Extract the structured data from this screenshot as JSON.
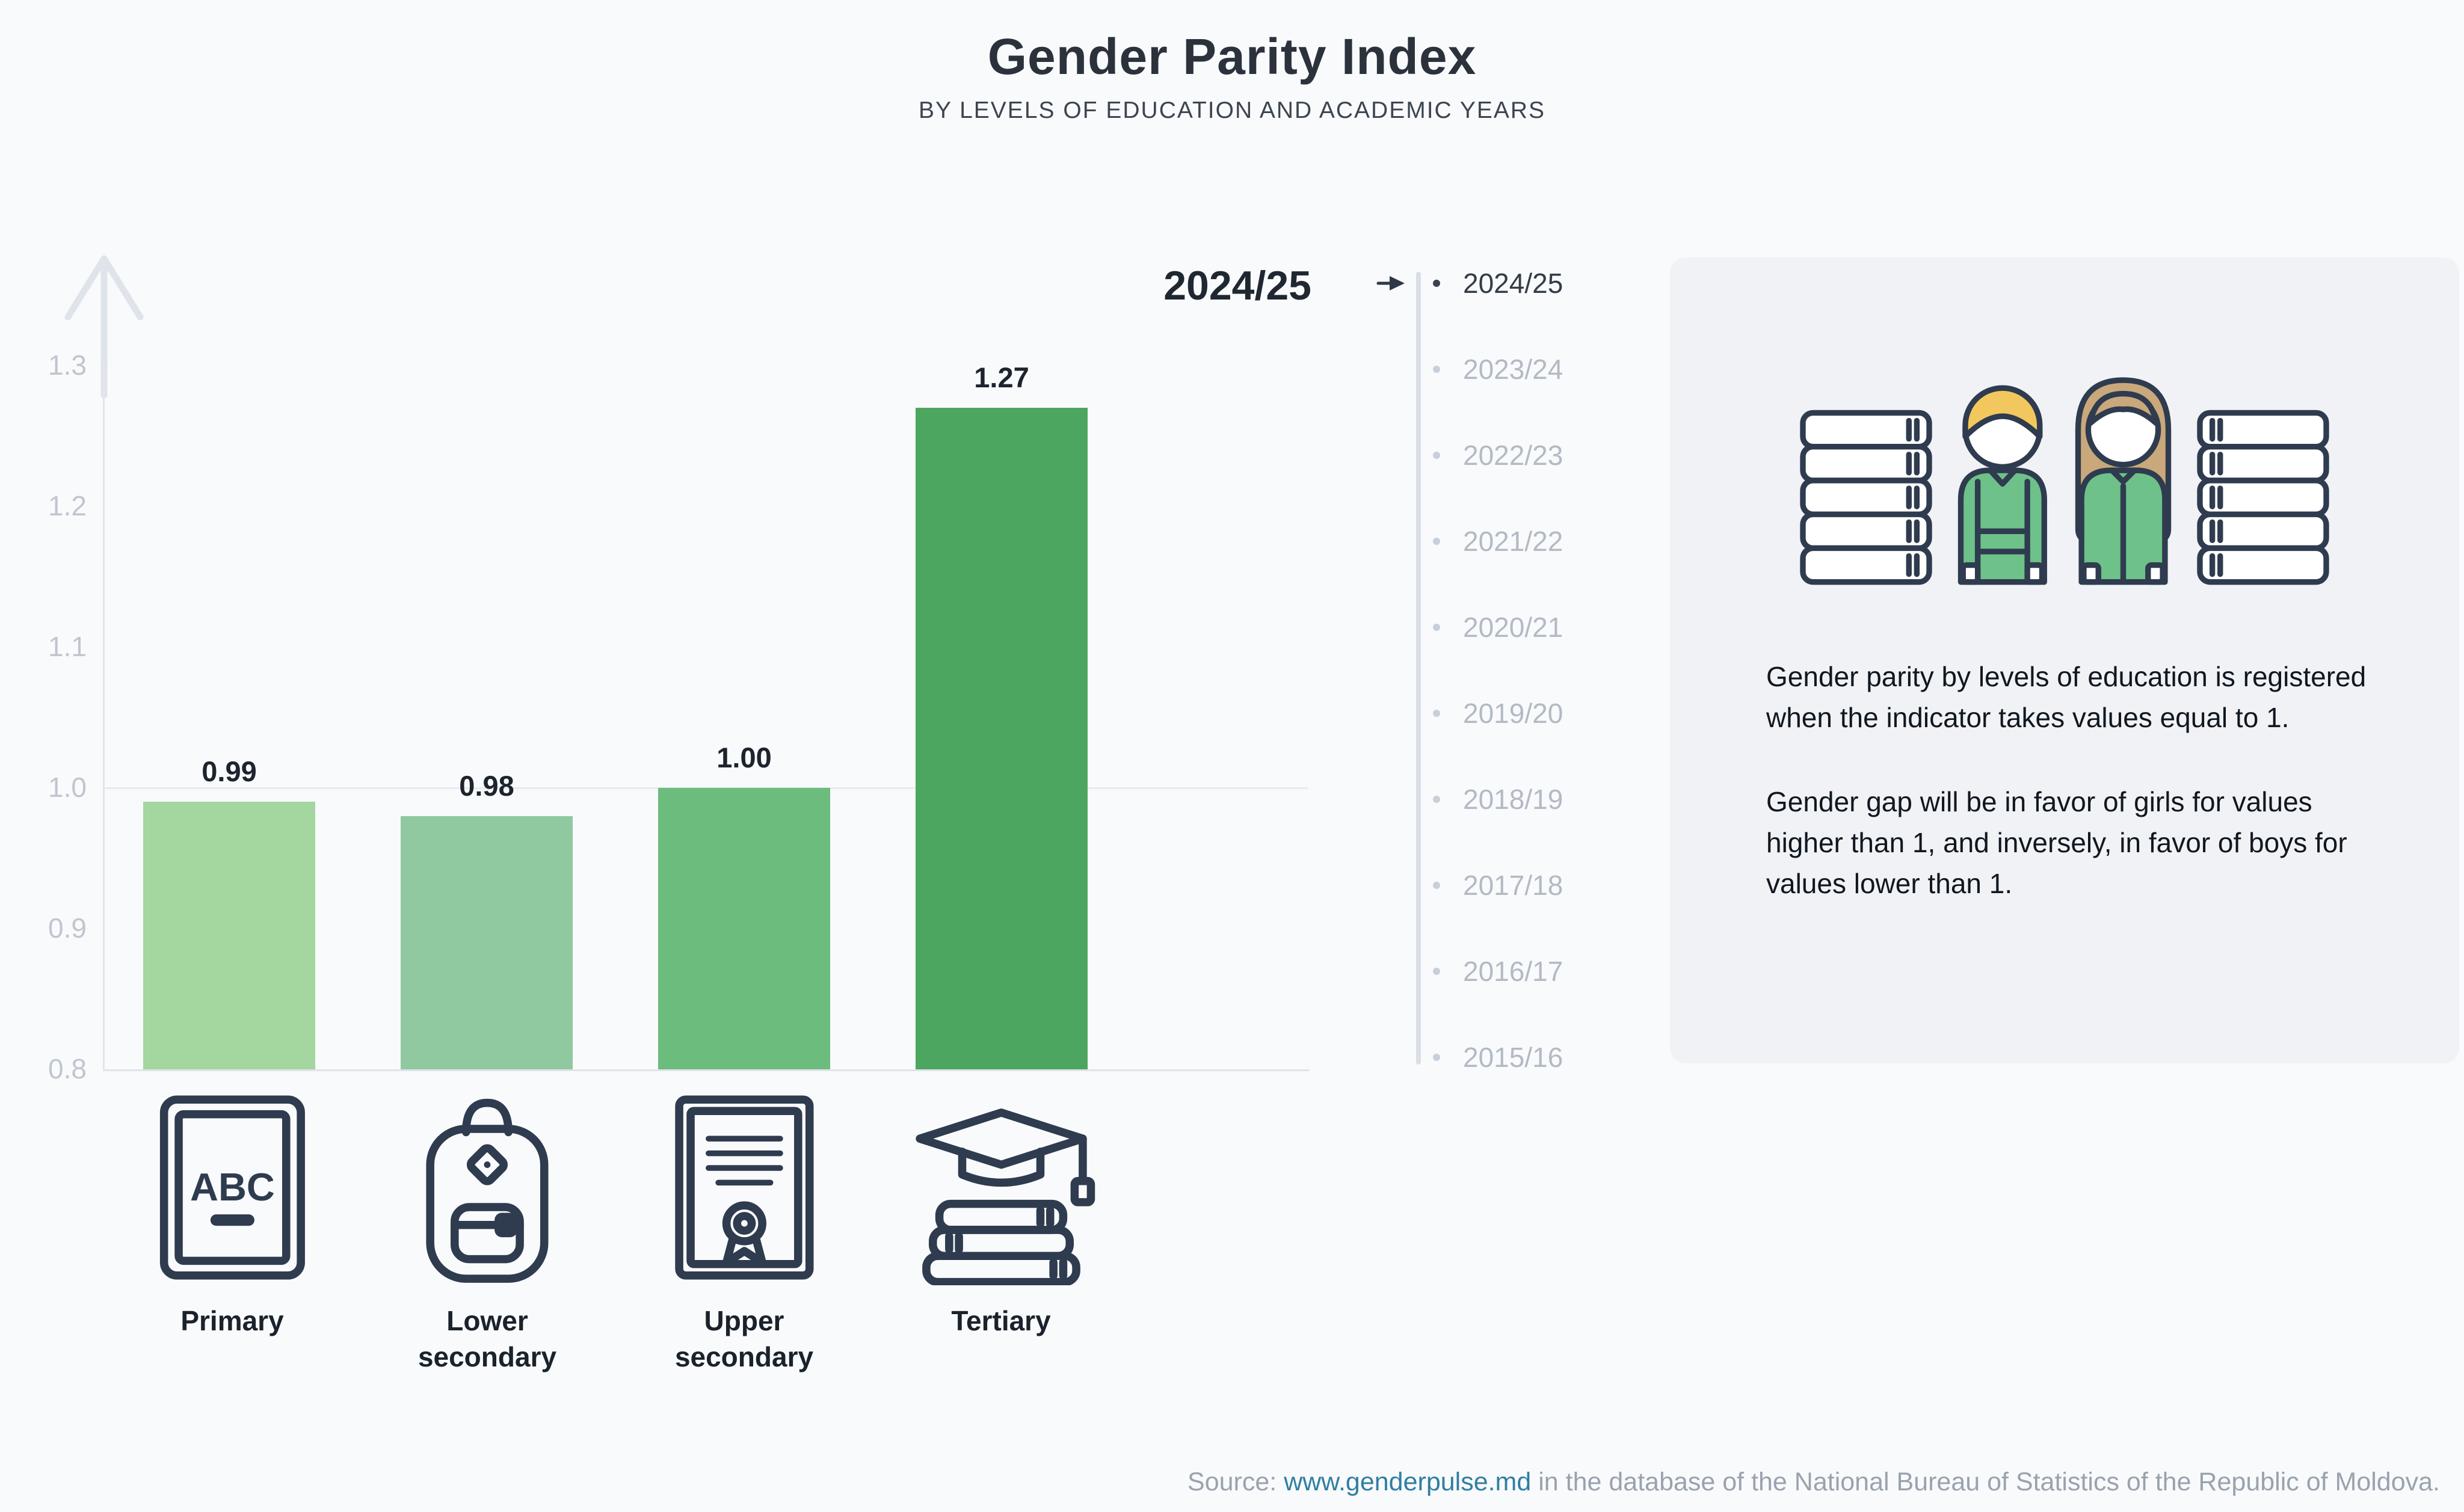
{
  "header": {
    "title": "Gender Parity Index",
    "subtitle": "BY LEVELS OF EDUCATION AND ACADEMIC YEARS"
  },
  "chart_data": {
    "type": "bar",
    "title": "Gender Parity Index",
    "categories": [
      "Primary",
      "Lower secondary",
      "Upper secondary",
      "Tertiary"
    ],
    "values": [
      0.99,
      0.98,
      1.0,
      1.27
    ],
    "value_labels": [
      "0.99",
      "0.98",
      "1.00",
      "1.27"
    ],
    "bar_colors": [
      "#a4d6a0",
      "#90c8a0",
      "#6cbc7d",
      "#4da65f"
    ],
    "ylim": [
      0.8,
      1.3
    ],
    "yticks": [
      0.8,
      0.9,
      1.0,
      1.1,
      1.2,
      1.3
    ],
    "ytick_labels": [
      "0.8",
      "0.9",
      "1.0",
      "1.1",
      "1.2",
      "1.3"
    ],
    "reference_line": 1.0,
    "grid": "reference line at 1.0 only",
    "legend": "none",
    "selected_year": "2024/25"
  },
  "timeline": {
    "selected": "2024/25",
    "years": [
      "2024/25",
      "2023/24",
      "2022/23",
      "2021/22",
      "2020/21",
      "2019/20",
      "2018/19",
      "2017/18",
      "2016/17",
      "2015/16"
    ]
  },
  "education_icons": [
    "abc-book-icon",
    "backpack-icon",
    "certificate-icon",
    "graduation-books-icon"
  ],
  "icons": {
    "primary_abc": "ABC"
  },
  "info_panel": {
    "paragraph1": "Gender parity by levels of education is registered when the indicator takes values equal to 1.",
    "paragraph2": "Gender gap will be in favor of girls for values higher than 1, and inversely, in favor of boys for values lower than 1."
  },
  "source": {
    "prefix": "Source: ",
    "link": "www.genderpulse.md",
    "suffix": " in the database of the National Bureau of Statistics of the Republic of Moldova."
  },
  "colors": {
    "background": "#f9fafc",
    "panel": "#f0f2f6",
    "accent_green": "#4da65f",
    "link": "#2e7fa2",
    "axis": "#dfe3e8",
    "inactive_text": "#b2bac3",
    "active_text": "#333d47"
  }
}
